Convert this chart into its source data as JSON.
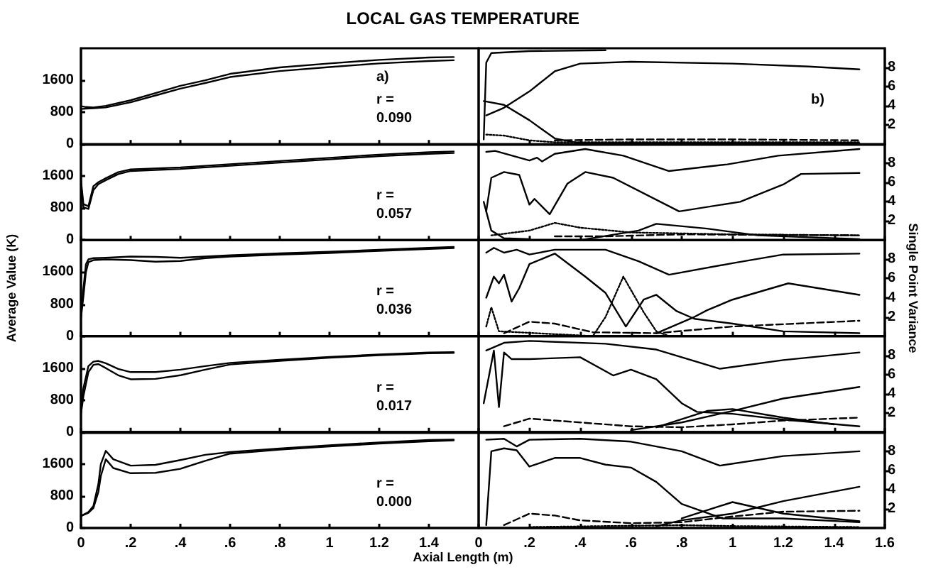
{
  "chart_data": [
    {
      "type": "line",
      "title": "LOCAL GAS TEMPERATURE",
      "annotations": [
        "a)",
        "r =\n0.090"
      ],
      "xlim": [
        0,
        1.6
      ],
      "xticks": [
        0,
        0.2,
        0.4,
        0.6,
        0.8,
        1,
        1.2,
        1.4
      ],
      "ylim": [
        0,
        2400
      ],
      "yticks": [
        0,
        800,
        1600
      ],
      "tick_labels": "y",
      "x": [
        0,
        0.02,
        0.05,
        0.1,
        0.2,
        0.3,
        0.4,
        0.5,
        0.6,
        0.8,
        1.0,
        1.2,
        1.4,
        1.5
      ],
      "series": [
        {
          "color": "#000000",
          "line_style": "solid",
          "values": [
            950,
            930,
            920,
            960,
            1100,
            1280,
            1460,
            1600,
            1760,
            1920,
            2020,
            2110,
            2170,
            2180
          ]
        },
        {
          "color": "#000000",
          "line_style": "solid",
          "values": [
            880,
            890,
            900,
            920,
            1050,
            1220,
            1390,
            1530,
            1680,
            1830,
            1930,
            2020,
            2080,
            2100
          ]
        }
      ]
    },
    {
      "type": "line",
      "annotations": [
        "b)"
      ],
      "xlim": [
        0,
        1.6
      ],
      "xticks": [
        0,
        0.2,
        0.4,
        0.6,
        0.8,
        1,
        1.2,
        1.4,
        1.6
      ],
      "y2lim": [
        0,
        10
      ],
      "y2ticks": [
        2,
        4,
        6,
        8
      ],
      "tick_labels": "y",
      "series": [
        {
          "color": "#000000",
          "line_style": "solid",
          "axis": "y2",
          "x": [
            0.03,
            0.1,
            0.2,
            0.3,
            0.4,
            0.6,
            1.0,
            1.3,
            1.5
          ],
          "values": [
            3.0,
            3.8,
            5.5,
            7.6,
            8.4,
            8.6,
            8.4,
            8.1,
            7.8
          ]
        },
        {
          "color": "#000000",
          "line_style": "solid",
          "axis": "y2",
          "x": [
            0.02,
            0.1,
            0.2,
            0.3,
            0.4,
            0.6,
            1.0,
            1.5
          ],
          "values": [
            4.5,
            4.1,
            2.5,
            0.6,
            0.1,
            0.1,
            0.1,
            0.1
          ]
        },
        {
          "color": "#000000",
          "line_style": "solid",
          "axis": "y2",
          "x": [
            0.02,
            0.03,
            0.05,
            0.2,
            0.5
          ],
          "values": [
            0.5,
            8.5,
            9.5,
            9.7,
            9.8
          ]
        },
        {
          "color": "#000000",
          "line_style": "dotted",
          "axis": "y2",
          "x": [
            0.03,
            0.1,
            0.2,
            0.3,
            0.6,
            1.0,
            1.5
          ],
          "values": [
            1.0,
            0.9,
            0.4,
            0.2,
            0.2,
            0.2,
            0.2
          ]
        },
        {
          "color": "#000000",
          "line_style": "dashed",
          "axis": "y2",
          "x": [
            0.3,
            0.6,
            1.0,
            1.5
          ],
          "values": [
            0.4,
            0.5,
            0.5,
            0.4
          ]
        }
      ]
    },
    {
      "type": "line",
      "annotations": [
        "r =\n0.057"
      ],
      "xlim": [
        0,
        1.6
      ],
      "xticks": [
        0,
        0.2,
        0.4,
        0.6,
        0.8,
        1,
        1.2,
        1.4
      ],
      "ylim": [
        0,
        2400
      ],
      "yticks": [
        0,
        800,
        1600
      ],
      "tick_labels": "y",
      "x": [
        0,
        0.01,
        0.03,
        0.05,
        0.07,
        0.1,
        0.15,
        0.2,
        0.4,
        0.6,
        0.8,
        1.0,
        1.2,
        1.4,
        1.5
      ],
      "series": [
        {
          "color": "#000000",
          "line_style": "solid",
          "values": [
            1500,
            900,
            850,
            1350,
            1450,
            1550,
            1700,
            1770,
            1820,
            1900,
            1980,
            2060,
            2140,
            2200,
            2220
          ]
        },
        {
          "color": "#000000",
          "line_style": "solid",
          "values": [
            1400,
            820,
            780,
            1250,
            1400,
            1500,
            1650,
            1730,
            1780,
            1860,
            1940,
            2020,
            2100,
            2160,
            2180
          ]
        }
      ]
    },
    {
      "type": "line",
      "xlim": [
        0,
        1.6
      ],
      "xticks": [
        0,
        0.2,
        0.4,
        0.6,
        0.8,
        1,
        1.2,
        1.4,
        1.6
      ],
      "y2lim": [
        0,
        10
      ],
      "y2ticks": [
        2,
        4,
        6,
        8
      ],
      "tick_labels": "y",
      "series": [
        {
          "color": "#000000",
          "line_style": "solid",
          "axis": "y2",
          "x": [
            0.03,
            0.065,
            0.2,
            0.23,
            0.25,
            0.3,
            0.42,
            0.57,
            0.75,
            0.98,
            1.18,
            1.5
          ],
          "values": [
            9.2,
            9.3,
            8.3,
            8.6,
            8.2,
            9.0,
            9.5,
            8.8,
            7.2,
            7.9,
            8.8,
            9.5
          ]
        },
        {
          "color": "#000000",
          "line_style": "solid",
          "axis": "y2",
          "x": [
            0.03,
            0.05,
            0.1,
            0.16,
            0.2,
            0.22,
            0.28,
            0.35,
            0.42,
            0.53,
            0.79,
            1.03,
            1.2,
            1.27,
            1.5
          ],
          "values": [
            3,
            6.5,
            7.1,
            6.8,
            3.7,
            4.3,
            2.7,
            5.9,
            7.1,
            6.5,
            3.0,
            4.0,
            5.8,
            6.9,
            7.0
          ]
        },
        {
          "color": "#000000",
          "line_style": "solid",
          "axis": "y2",
          "x": [
            0.02,
            0.05,
            0.1,
            0.2
          ],
          "values": [
            4,
            1.0,
            0.2,
            0.1
          ]
        },
        {
          "color": "#000000",
          "line_style": "dotted",
          "axis": "y2",
          "x": [
            0.05,
            0.2,
            0.3,
            0.4,
            0.6,
            1.0,
            1.5
          ],
          "values": [
            0.5,
            1.0,
            1.8,
            1.3,
            0.8,
            0.6,
            0.5
          ]
        },
        {
          "color": "#000000",
          "line_style": "solid",
          "axis": "y2",
          "x": [
            0.4,
            0.63,
            0.7,
            0.9,
            1.1,
            1.5
          ],
          "values": [
            0,
            1.0,
            1.7,
            1.2,
            0.5,
            0.1
          ]
        },
        {
          "color": "#000000",
          "line_style": "dashed",
          "axis": "y2",
          "x": [
            0.3,
            0.5,
            0.8,
            1.5
          ],
          "values": [
            0.4,
            0.4,
            0.6,
            0.5
          ]
        }
      ]
    },
    {
      "type": "line",
      "ylabel": "Average Value (K)",
      "annotations": [
        "r =\n0.036"
      ],
      "xlim": [
        0,
        1.6
      ],
      "xticks": [
        0,
        0.2,
        0.4,
        0.6,
        0.8,
        1,
        1.2,
        1.4
      ],
      "ylim": [
        0,
        2400
      ],
      "yticks": [
        0,
        800,
        1600
      ],
      "tick_labels": "y",
      "x": [
        0,
        0.01,
        0.02,
        0.03,
        0.05,
        0.1,
        0.2,
        0.3,
        0.4,
        0.5,
        0.6,
        0.8,
        1.0,
        1.2,
        1.4,
        1.5
      ],
      "series": [
        {
          "color": "#000000",
          "line_style": "solid",
          "values": [
            500,
            1200,
            1800,
            1920,
            1950,
            1960,
            1990,
            1980,
            1960,
            1990,
            2020,
            2070,
            2110,
            2160,
            2210,
            2230
          ]
        },
        {
          "color": "#000000",
          "line_style": "solid",
          "values": [
            450,
            1000,
            1600,
            1850,
            1900,
            1920,
            1900,
            1860,
            1880,
            1950,
            1990,
            2040,
            2080,
            2130,
            2180,
            2200
          ]
        }
      ]
    },
    {
      "type": "line",
      "y2label": "Single Point Variance",
      "xlim": [
        0,
        1.6
      ],
      "xticks": [
        0,
        0.2,
        0.4,
        0.6,
        0.8,
        1,
        1.2,
        1.4,
        1.6
      ],
      "y2lim": [
        0,
        10
      ],
      "y2ticks": [
        2,
        4,
        6,
        8
      ],
      "tick_labels": "y",
      "series": [
        {
          "color": "#000000",
          "line_style": "solid",
          "axis": "y2",
          "x": [
            0.03,
            0.06,
            0.1,
            0.15,
            0.2,
            0.3,
            0.5,
            0.63,
            0.75,
            1.0,
            1.2,
            1.5
          ],
          "values": [
            8.7,
            9.2,
            8.7,
            9.0,
            8.5,
            9.0,
            9.0,
            7.8,
            6.4,
            7.6,
            8.5,
            8.6
          ]
        },
        {
          "color": "#000000",
          "line_style": "solid",
          "axis": "y2",
          "x": [
            0.03,
            0.06,
            0.08,
            0.1,
            0.13,
            0.16,
            0.2,
            0.3,
            0.42,
            0.5,
            0.58,
            0.65,
            0.7,
            0.78,
            0.85,
            1.0,
            1.2,
            1.5
          ],
          "values": [
            4,
            6.2,
            5.5,
            6.4,
            3.6,
            5,
            7.5,
            8.6,
            6.2,
            4.5,
            1.0,
            3.8,
            4.3,
            2.6,
            1.8,
            1.3,
            0.5,
            0.3
          ]
        },
        {
          "color": "#000000",
          "line_style": "solid",
          "axis": "y2",
          "x": [
            0.7,
            0.85,
            0.9,
            1.0,
            1.22,
            1.5
          ],
          "values": [
            0.3,
            2.0,
            2.7,
            3.8,
            5.5,
            4.3
          ]
        },
        {
          "color": "#000000",
          "line_style": "dotted",
          "axis": "y2",
          "x": [
            0.03,
            0.05,
            0.08,
            0.45,
            0.5,
            0.57,
            0.65,
            0.7,
            0.75
          ],
          "values": [
            1,
            3,
            0.5,
            0,
            2,
            6.2,
            2.5,
            0.5,
            0
          ]
        },
        {
          "color": "#000000",
          "line_style": "dashed",
          "axis": "y2",
          "x": [
            0.1,
            0.2,
            0.3,
            0.45,
            0.7,
            1.0,
            1.5
          ],
          "values": [
            0.3,
            1.5,
            1.3,
            0.4,
            0.3,
            1.0,
            1.6
          ]
        }
      ]
    },
    {
      "type": "line",
      "annotations": [
        "r =\n0.017"
      ],
      "xlim": [
        0,
        1.6
      ],
      "xticks": [
        0,
        0.2,
        0.4,
        0.6,
        0.8,
        1,
        1.2,
        1.4
      ],
      "ylim": [
        0,
        2400
      ],
      "yticks": [
        0,
        800,
        1600
      ],
      "tick_labels": "y",
      "x": [
        0,
        0.01,
        0.03,
        0.05,
        0.07,
        0.1,
        0.15,
        0.2,
        0.3,
        0.4,
        0.5,
        0.6,
        0.8,
        1.0,
        1.2,
        1.4,
        1.5
      ],
      "series": [
        {
          "color": "#000000",
          "line_style": "solid",
          "values": [
            600,
            1100,
            1650,
            1760,
            1780,
            1720,
            1580,
            1500,
            1500,
            1560,
            1650,
            1730,
            1810,
            1880,
            1940,
            1990,
            2000
          ]
        },
        {
          "color": "#000000",
          "line_style": "solid",
          "values": [
            450,
            900,
            1500,
            1680,
            1700,
            1600,
            1420,
            1320,
            1330,
            1420,
            1560,
            1690,
            1780,
            1860,
            1920,
            1970,
            1980
          ]
        }
      ]
    },
    {
      "type": "line",
      "xlim": [
        0,
        1.6
      ],
      "xticks": [
        0,
        0.2,
        0.4,
        0.6,
        0.8,
        1,
        1.2,
        1.4,
        1.6
      ],
      "y2lim": [
        0,
        10
      ],
      "y2ticks": [
        2,
        4,
        6,
        8
      ],
      "tick_labels": "y",
      "series": [
        {
          "color": "#000000",
          "line_style": "solid",
          "axis": "y2",
          "x": [
            0.03,
            0.1,
            0.2,
            0.5,
            0.7,
            0.95,
            1.2,
            1.5
          ],
          "values": [
            8.5,
            9.3,
            9.5,
            9.2,
            8.6,
            6.6,
            7.5,
            8.3
          ]
        },
        {
          "color": "#000000",
          "line_style": "solid",
          "axis": "y2",
          "x": [
            0.02,
            0.06,
            0.08,
            0.1,
            0.13,
            0.2,
            0.4,
            0.53,
            0.6,
            0.7,
            0.8,
            0.86,
            1.0,
            1.2,
            1.5
          ],
          "values": [
            3,
            8.5,
            2.6,
            8.3,
            7.6,
            7.6,
            7.8,
            5.9,
            6.5,
            5.5,
            3.0,
            2.1,
            1.9,
            1.3,
            0.6
          ]
        },
        {
          "color": "#000000",
          "line_style": "solid",
          "axis": "y2",
          "x": [
            0.6,
            0.8,
            1.0,
            1.2,
            1.5
          ],
          "values": [
            0.2,
            1.0,
            2.2,
            3.5,
            4.7
          ]
        },
        {
          "color": "#000000",
          "line_style": "solid",
          "axis": "y2",
          "x": [
            0.7,
            0.9,
            1.0,
            1.2,
            1.4
          ],
          "values": [
            0.5,
            2.2,
            2.4,
            1.5,
            0.8
          ]
        },
        {
          "color": "#000000",
          "line_style": "dashed",
          "axis": "y2",
          "x": [
            0.1,
            0.2,
            0.4,
            0.6,
            0.8,
            1.0,
            1.2,
            1.5
          ],
          "values": [
            0.6,
            1.4,
            1.0,
            0.6,
            0.5,
            0.8,
            1.2,
            1.5
          ]
        }
      ]
    },
    {
      "type": "line",
      "xlabel": "Axial Length (m)",
      "annotations": [
        "r =\n0.000"
      ],
      "xlim": [
        0,
        1.6
      ],
      "xticks": [
        0,
        {
          "value": 0.2,
          "label": ".2"
        },
        {
          "value": 0.4,
          "label": ".4"
        },
        {
          "value": 0.6,
          "label": ".6"
        },
        {
          "value": 0.8,
          "label": ".8"
        },
        1,
        1.2,
        1.4
      ],
      "ylim": [
        0,
        2400
      ],
      "yticks": [
        0,
        800,
        1600
      ],
      "x": [
        0,
        0.03,
        0.05,
        0.07,
        0.08,
        0.1,
        0.13,
        0.2,
        0.3,
        0.4,
        0.5,
        0.6,
        0.8,
        1.0,
        1.2,
        1.4,
        1.5
      ],
      "series": [
        {
          "color": "#000000",
          "line_style": "solid",
          "values": [
            300,
            400,
            550,
            1100,
            1600,
            1930,
            1720,
            1560,
            1580,
            1700,
            1830,
            1900,
            1990,
            2070,
            2140,
            2200,
            2210
          ]
        },
        {
          "color": "#000000",
          "line_style": "solid",
          "values": [
            300,
            380,
            500,
            900,
            1300,
            1720,
            1500,
            1370,
            1380,
            1480,
            1680,
            1860,
            1960,
            2040,
            2110,
            2170,
            2190
          ]
        }
      ]
    },
    {
      "type": "line",
      "xlim": [
        0,
        1.6
      ],
      "xticks": [
        0,
        {
          "value": 0.2,
          "label": ".2"
        },
        {
          "value": 0.4,
          "label": ".4"
        },
        {
          "value": 0.6,
          "label": ".6"
        },
        {
          "value": 0.8,
          "label": ".8"
        },
        1,
        1.2,
        1.4,
        1.6
      ],
      "y2lim": [
        0,
        10
      ],
      "y2ticks": [
        2,
        4,
        6,
        8
      ],
      "series": [
        {
          "color": "#000000",
          "line_style": "solid",
          "axis": "y2",
          "x": [
            0.03,
            0.1,
            0.15,
            0.2,
            0.4,
            0.6,
            0.8,
            0.95,
            1.2,
            1.5
          ],
          "values": [
            9.2,
            9.3,
            8.5,
            9.2,
            9.3,
            9.0,
            8.0,
            6.5,
            7.5,
            8.0
          ]
        },
        {
          "color": "#000000",
          "line_style": "solid",
          "axis": "y2",
          "x": [
            0.03,
            0.05,
            0.1,
            0.15,
            0.2,
            0.3,
            0.4,
            0.5,
            0.6,
            0.7,
            0.8,
            0.96,
            1.2,
            1.5
          ],
          "values": [
            0.3,
            8,
            8.3,
            8.1,
            6.4,
            7.3,
            7.3,
            6.6,
            6.3,
            4.8,
            2.5,
            1.0,
            1.0,
            0.6
          ]
        },
        {
          "color": "#000000",
          "line_style": "solid",
          "axis": "y2",
          "x": [
            0.7,
            0.8,
            1.0,
            1.2,
            1.5
          ],
          "values": [
            0.2,
            0.8,
            1.5,
            2.8,
            4.3
          ]
        },
        {
          "color": "#000000",
          "line_style": "solid",
          "axis": "y2",
          "x": [
            0.8,
            1.0,
            1.2,
            1.5
          ],
          "values": [
            1.0,
            2.7,
            1.5,
            0.7
          ]
        },
        {
          "color": "#000000",
          "line_style": "dashed",
          "axis": "y2",
          "x": [
            0.1,
            0.2,
            0.3,
            0.4,
            0.6,
            0.8,
            1.0,
            1.2,
            1.5
          ],
          "values": [
            0.3,
            1.5,
            1.3,
            0.8,
            0.5,
            0.6,
            1.2,
            1.7,
            1.8
          ]
        },
        {
          "color": "#000000",
          "line_style": "dotted",
          "axis": "y2",
          "x": [
            0.2,
            0.8,
            1.0,
            1.5
          ],
          "values": [
            0.1,
            0.3,
            0.2,
            0.1
          ]
        }
      ]
    }
  ]
}
